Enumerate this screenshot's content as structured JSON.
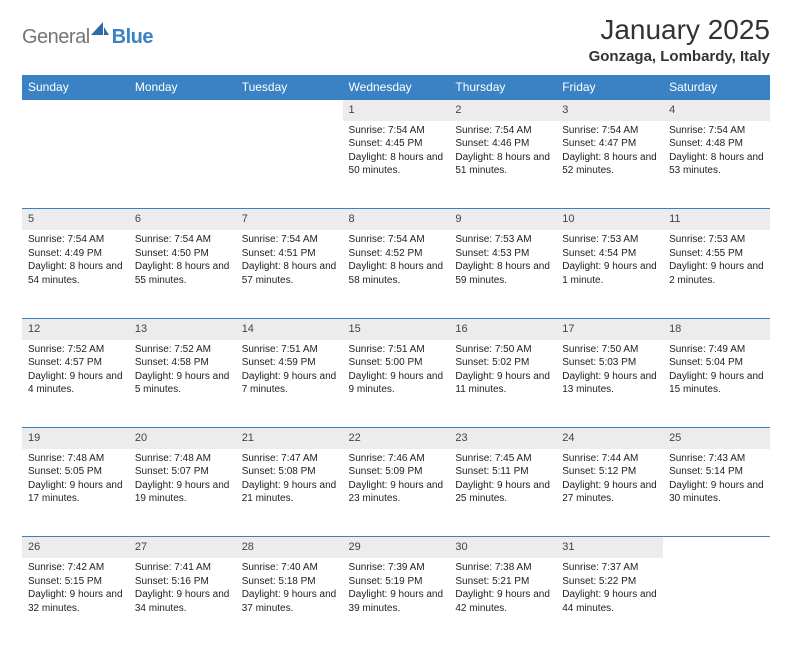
{
  "brand": {
    "part1": "General",
    "part2": "Blue"
  },
  "title": "January 2025",
  "location": "Gonzaga, Lombardy, Italy",
  "colors": {
    "header_bg": "#3b82c4",
    "header_text": "#ffffff",
    "daynum_bg": "#ececec",
    "row_divider": "#3b82c4",
    "page_bg": "#ffffff",
    "body_text": "#222222",
    "logo_gray": "#757575",
    "logo_blue": "#3b82c4"
  },
  "typography": {
    "title_fontsize": 28,
    "location_fontsize": 15,
    "weekday_fontsize": 12,
    "daynum_fontsize": 11,
    "cell_fontsize": 10
  },
  "weekdays": [
    "Sunday",
    "Monday",
    "Tuesday",
    "Wednesday",
    "Thursday",
    "Friday",
    "Saturday"
  ],
  "weeks": [
    [
      null,
      null,
      null,
      {
        "n": "1",
        "l1": "Sunrise: 7:54 AM",
        "l2": "Sunset: 4:45 PM",
        "l3": "Daylight: 8 hours and 50 minutes."
      },
      {
        "n": "2",
        "l1": "Sunrise: 7:54 AM",
        "l2": "Sunset: 4:46 PM",
        "l3": "Daylight: 8 hours and 51 minutes."
      },
      {
        "n": "3",
        "l1": "Sunrise: 7:54 AM",
        "l2": "Sunset: 4:47 PM",
        "l3": "Daylight: 8 hours and 52 minutes."
      },
      {
        "n": "4",
        "l1": "Sunrise: 7:54 AM",
        "l2": "Sunset: 4:48 PM",
        "l3": "Daylight: 8 hours and 53 minutes."
      }
    ],
    [
      {
        "n": "5",
        "l1": "Sunrise: 7:54 AM",
        "l2": "Sunset: 4:49 PM",
        "l3": "Daylight: 8 hours and 54 minutes."
      },
      {
        "n": "6",
        "l1": "Sunrise: 7:54 AM",
        "l2": "Sunset: 4:50 PM",
        "l3": "Daylight: 8 hours and 55 minutes."
      },
      {
        "n": "7",
        "l1": "Sunrise: 7:54 AM",
        "l2": "Sunset: 4:51 PM",
        "l3": "Daylight: 8 hours and 57 minutes."
      },
      {
        "n": "8",
        "l1": "Sunrise: 7:54 AM",
        "l2": "Sunset: 4:52 PM",
        "l3": "Daylight: 8 hours and 58 minutes."
      },
      {
        "n": "9",
        "l1": "Sunrise: 7:53 AM",
        "l2": "Sunset: 4:53 PM",
        "l3": "Daylight: 8 hours and 59 minutes."
      },
      {
        "n": "10",
        "l1": "Sunrise: 7:53 AM",
        "l2": "Sunset: 4:54 PM",
        "l3": "Daylight: 9 hours and 1 minute."
      },
      {
        "n": "11",
        "l1": "Sunrise: 7:53 AM",
        "l2": "Sunset: 4:55 PM",
        "l3": "Daylight: 9 hours and 2 minutes."
      }
    ],
    [
      {
        "n": "12",
        "l1": "Sunrise: 7:52 AM",
        "l2": "Sunset: 4:57 PM",
        "l3": "Daylight: 9 hours and 4 minutes."
      },
      {
        "n": "13",
        "l1": "Sunrise: 7:52 AM",
        "l2": "Sunset: 4:58 PM",
        "l3": "Daylight: 9 hours and 5 minutes."
      },
      {
        "n": "14",
        "l1": "Sunrise: 7:51 AM",
        "l2": "Sunset: 4:59 PM",
        "l3": "Daylight: 9 hours and 7 minutes."
      },
      {
        "n": "15",
        "l1": "Sunrise: 7:51 AM",
        "l2": "Sunset: 5:00 PM",
        "l3": "Daylight: 9 hours and 9 minutes."
      },
      {
        "n": "16",
        "l1": "Sunrise: 7:50 AM",
        "l2": "Sunset: 5:02 PM",
        "l3": "Daylight: 9 hours and 11 minutes."
      },
      {
        "n": "17",
        "l1": "Sunrise: 7:50 AM",
        "l2": "Sunset: 5:03 PM",
        "l3": "Daylight: 9 hours and 13 minutes."
      },
      {
        "n": "18",
        "l1": "Sunrise: 7:49 AM",
        "l2": "Sunset: 5:04 PM",
        "l3": "Daylight: 9 hours and 15 minutes."
      }
    ],
    [
      {
        "n": "19",
        "l1": "Sunrise: 7:48 AM",
        "l2": "Sunset: 5:05 PM",
        "l3": "Daylight: 9 hours and 17 minutes."
      },
      {
        "n": "20",
        "l1": "Sunrise: 7:48 AM",
        "l2": "Sunset: 5:07 PM",
        "l3": "Daylight: 9 hours and 19 minutes."
      },
      {
        "n": "21",
        "l1": "Sunrise: 7:47 AM",
        "l2": "Sunset: 5:08 PM",
        "l3": "Daylight: 9 hours and 21 minutes."
      },
      {
        "n": "22",
        "l1": "Sunrise: 7:46 AM",
        "l2": "Sunset: 5:09 PM",
        "l3": "Daylight: 9 hours and 23 minutes."
      },
      {
        "n": "23",
        "l1": "Sunrise: 7:45 AM",
        "l2": "Sunset: 5:11 PM",
        "l3": "Daylight: 9 hours and 25 minutes."
      },
      {
        "n": "24",
        "l1": "Sunrise: 7:44 AM",
        "l2": "Sunset: 5:12 PM",
        "l3": "Daylight: 9 hours and 27 minutes."
      },
      {
        "n": "25",
        "l1": "Sunrise: 7:43 AM",
        "l2": "Sunset: 5:14 PM",
        "l3": "Daylight: 9 hours and 30 minutes."
      }
    ],
    [
      {
        "n": "26",
        "l1": "Sunrise: 7:42 AM",
        "l2": "Sunset: 5:15 PM",
        "l3": "Daylight: 9 hours and 32 minutes."
      },
      {
        "n": "27",
        "l1": "Sunrise: 7:41 AM",
        "l2": "Sunset: 5:16 PM",
        "l3": "Daylight: 9 hours and 34 minutes."
      },
      {
        "n": "28",
        "l1": "Sunrise: 7:40 AM",
        "l2": "Sunset: 5:18 PM",
        "l3": "Daylight: 9 hours and 37 minutes."
      },
      {
        "n": "29",
        "l1": "Sunrise: 7:39 AM",
        "l2": "Sunset: 5:19 PM",
        "l3": "Daylight: 9 hours and 39 minutes."
      },
      {
        "n": "30",
        "l1": "Sunrise: 7:38 AM",
        "l2": "Sunset: 5:21 PM",
        "l3": "Daylight: 9 hours and 42 minutes."
      },
      {
        "n": "31",
        "l1": "Sunrise: 7:37 AM",
        "l2": "Sunset: 5:22 PM",
        "l3": "Daylight: 9 hours and 44 minutes."
      },
      null
    ]
  ]
}
